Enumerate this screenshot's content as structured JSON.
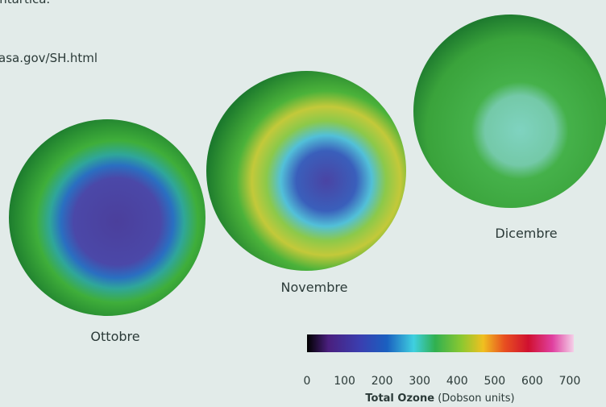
{
  "header": {
    "caption_tail": "antartica.",
    "source": "asa.gov/SH.html"
  },
  "maps": [
    {
      "label": "Ottobre"
    },
    {
      "label": "Novembre"
    },
    {
      "label": "Dicembre"
    }
  ],
  "colorbar": {
    "ticks": [
      0,
      100,
      200,
      300,
      400,
      500,
      600,
      700
    ],
    "title": "Total Ozone",
    "unit": "(Dobson units)"
  }
}
